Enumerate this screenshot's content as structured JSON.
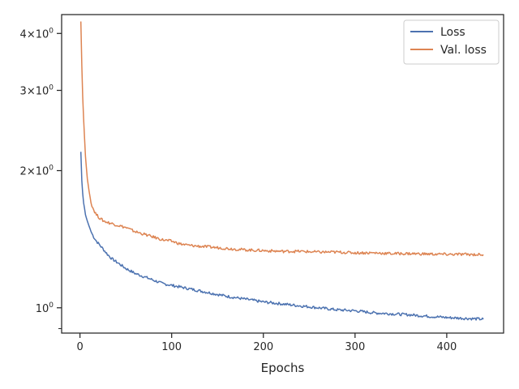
{
  "chart_data": {
    "type": "line",
    "xlabel": "Epochs",
    "ylabel": "",
    "xlim": [
      -20,
      462
    ],
    "ylim": [
      0.88,
      4.4
    ],
    "y_scale": "log",
    "x_ticks": [
      0,
      100,
      200,
      300,
      400
    ],
    "y_ticks": [
      {
        "value": 1,
        "label": "10",
        "exp": "0"
      },
      {
        "value": 2,
        "label": "2×10",
        "exp": "0"
      },
      {
        "value": 3,
        "label": "3×10",
        "exp": "0"
      },
      {
        "value": 4,
        "label": "4×10",
        "exp": "0"
      }
    ],
    "y_minor_ticks": [
      0.9
    ],
    "grid": false,
    "legend_position": "top-right",
    "series": [
      {
        "name": "Loss",
        "color": "#4c72b0",
        "x": [
          1,
          2,
          3,
          4,
          5,
          6,
          8,
          10,
          12,
          15,
          18,
          22,
          26,
          30,
          35,
          40,
          45,
          50,
          60,
          70,
          80,
          90,
          100,
          110,
          120,
          140,
          160,
          180,
          200,
          220,
          240,
          260,
          280,
          300,
          320,
          340,
          360,
          380,
          400,
          420,
          440
        ],
        "y": [
          2.2,
          1.9,
          1.78,
          1.7,
          1.65,
          1.6,
          1.55,
          1.51,
          1.47,
          1.43,
          1.4,
          1.37,
          1.34,
          1.31,
          1.28,
          1.26,
          1.24,
          1.22,
          1.19,
          1.17,
          1.15,
          1.13,
          1.12,
          1.11,
          1.1,
          1.08,
          1.06,
          1.045,
          1.03,
          1.02,
          1.01,
          1.0,
          0.99,
          0.985,
          0.975,
          0.97,
          0.965,
          0.958,
          0.952,
          0.948,
          0.944
        ]
      },
      {
        "name": "Val. loss",
        "color": "#dd8452",
        "x": [
          1,
          2,
          3,
          4,
          5,
          6,
          8,
          10,
          12,
          15,
          18,
          22,
          26,
          30,
          35,
          40,
          45,
          50,
          60,
          70,
          80,
          90,
          100,
          110,
          120,
          140,
          160,
          180,
          200,
          220,
          240,
          260,
          280,
          300,
          320,
          340,
          360,
          380,
          400,
          420,
          440
        ],
        "y": [
          4.25,
          3.4,
          2.9,
          2.6,
          2.35,
          2.15,
          1.92,
          1.8,
          1.7,
          1.64,
          1.6,
          1.57,
          1.55,
          1.54,
          1.53,
          1.52,
          1.51,
          1.5,
          1.47,
          1.45,
          1.43,
          1.41,
          1.4,
          1.38,
          1.37,
          1.36,
          1.35,
          1.34,
          1.335,
          1.33,
          1.33,
          1.325,
          1.325,
          1.32,
          1.32,
          1.315,
          1.315,
          1.312,
          1.31,
          1.31,
          1.308
        ]
      }
    ]
  }
}
